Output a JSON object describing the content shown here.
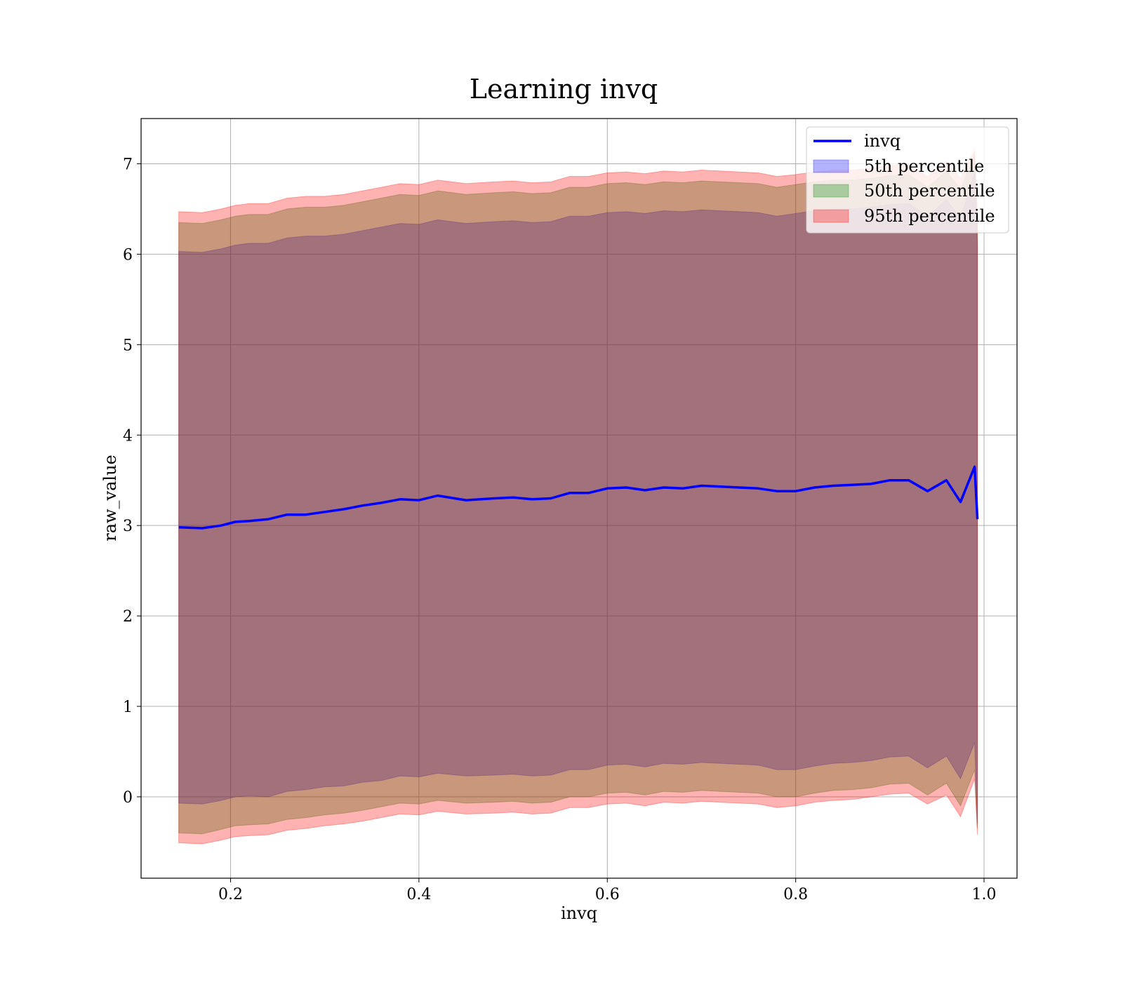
{
  "chart_data": {
    "type": "area",
    "title": "Learning invq",
    "xlabel": "invq",
    "ylabel": "raw_value",
    "xlim": [
      0.105,
      1.035
    ],
    "ylim": [
      -0.9,
      7.5
    ],
    "xticks": [
      0.2,
      0.4,
      0.6,
      0.8,
      1.0
    ],
    "xtick_labels": [
      "0.2",
      "0.4",
      "0.6",
      "0.8",
      "1.0"
    ],
    "yticks": [
      0,
      1,
      2,
      3,
      4,
      5,
      6,
      7
    ],
    "ytick_labels": [
      "0",
      "1",
      "2",
      "3",
      "4",
      "5",
      "6",
      "7"
    ],
    "grid": true,
    "legend_position": "top-right",
    "legend": [
      {
        "label": "invq",
        "kind": "line",
        "color": "#0000ff"
      },
      {
        "label": "5th percentile",
        "kind": "patch",
        "color": "#0000ff"
      },
      {
        "label": "50th percentile",
        "kind": "patch",
        "color": "#008000"
      },
      {
        "label": "95th percentile",
        "kind": "patch",
        "color": "#ff0000"
      }
    ],
    "x": [
      0.145,
      0.17,
      0.19,
      0.205,
      0.22,
      0.24,
      0.26,
      0.28,
      0.3,
      0.32,
      0.34,
      0.36,
      0.38,
      0.4,
      0.42,
      0.45,
      0.48,
      0.5,
      0.52,
      0.54,
      0.56,
      0.58,
      0.6,
      0.62,
      0.64,
      0.66,
      0.68,
      0.7,
      0.72,
      0.74,
      0.76,
      0.78,
      0.8,
      0.82,
      0.84,
      0.86,
      0.88,
      0.9,
      0.92,
      0.94,
      0.96,
      0.975,
      0.99,
      0.993
    ],
    "series": [
      {
        "name": "invq",
        "type": "line",
        "color": "#0000ff",
        "values": [
          2.98,
          2.97,
          3.0,
          3.04,
          3.05,
          3.07,
          3.12,
          3.12,
          3.15,
          3.18,
          3.22,
          3.25,
          3.29,
          3.28,
          3.33,
          3.28,
          3.3,
          3.31,
          3.29,
          3.3,
          3.36,
          3.36,
          3.41,
          3.42,
          3.39,
          3.42,
          3.41,
          3.44,
          3.43,
          3.42,
          3.41,
          3.38,
          3.38,
          3.42,
          3.44,
          3.45,
          3.46,
          3.5,
          3.5,
          3.38,
          3.5,
          3.26,
          3.65,
          3.07
        ]
      },
      {
        "name": "5th percentile",
        "type": "band",
        "color": "#0000ff",
        "lower": [
          -0.07,
          -0.08,
          -0.04,
          0.0,
          0.01,
          0.0,
          0.06,
          0.08,
          0.11,
          0.12,
          0.16,
          0.18,
          0.23,
          0.22,
          0.26,
          0.23,
          0.24,
          0.25,
          0.23,
          0.24,
          0.3,
          0.3,
          0.35,
          0.36,
          0.33,
          0.37,
          0.36,
          0.38,
          0.37,
          0.36,
          0.35,
          0.3,
          0.3,
          0.34,
          0.37,
          0.38,
          0.4,
          0.44,
          0.45,
          0.32,
          0.45,
          0.2,
          0.6,
          -0.3
        ],
        "upper": [
          6.03,
          6.02,
          6.06,
          6.1,
          6.12,
          6.12,
          6.18,
          6.2,
          6.2,
          6.22,
          6.26,
          6.3,
          6.34,
          6.33,
          6.38,
          6.34,
          6.36,
          6.37,
          6.35,
          6.36,
          6.42,
          6.42,
          6.46,
          6.47,
          6.45,
          6.48,
          6.47,
          6.49,
          6.48,
          6.47,
          6.46,
          6.42,
          6.45,
          6.48,
          6.5,
          6.5,
          6.52,
          6.55,
          6.56,
          6.42,
          6.6,
          6.4,
          6.9,
          6.1
        ]
      },
      {
        "name": "50th percentile",
        "type": "band",
        "color": "#008000",
        "lower": [
          -0.4,
          -0.41,
          -0.36,
          -0.32,
          -0.31,
          -0.3,
          -0.25,
          -0.23,
          -0.2,
          -0.18,
          -0.15,
          -0.11,
          -0.07,
          -0.08,
          -0.04,
          -0.07,
          -0.06,
          -0.05,
          -0.07,
          -0.06,
          0.0,
          0.0,
          0.04,
          0.05,
          0.02,
          0.06,
          0.05,
          0.07,
          0.06,
          0.05,
          0.04,
          0.0,
          0.0,
          0.04,
          0.07,
          0.08,
          0.1,
          0.14,
          0.15,
          0.02,
          0.15,
          -0.1,
          0.3,
          -0.35
        ],
        "upper": [
          6.35,
          6.34,
          6.38,
          6.42,
          6.44,
          6.44,
          6.5,
          6.52,
          6.52,
          6.54,
          6.58,
          6.62,
          6.66,
          6.65,
          6.7,
          6.66,
          6.68,
          6.69,
          6.67,
          6.68,
          6.74,
          6.74,
          6.78,
          6.79,
          6.77,
          6.8,
          6.79,
          6.81,
          6.8,
          6.79,
          6.78,
          6.74,
          6.77,
          6.8,
          6.82,
          6.82,
          6.84,
          6.87,
          6.88,
          6.74,
          6.92,
          6.72,
          7.1,
          6.3
        ]
      },
      {
        "name": "95th percentile",
        "type": "band",
        "color": "#ff0000",
        "lower": [
          -0.51,
          -0.52,
          -0.48,
          -0.44,
          -0.43,
          -0.42,
          -0.37,
          -0.35,
          -0.32,
          -0.3,
          -0.27,
          -0.23,
          -0.19,
          -0.2,
          -0.16,
          -0.19,
          -0.18,
          -0.17,
          -0.19,
          -0.18,
          -0.12,
          -0.12,
          -0.08,
          -0.07,
          -0.1,
          -0.06,
          -0.07,
          -0.05,
          -0.06,
          -0.07,
          -0.08,
          -0.12,
          -0.1,
          -0.06,
          -0.04,
          -0.03,
          0.0,
          0.03,
          0.04,
          -0.08,
          0.02,
          -0.22,
          0.2,
          -0.42
        ],
        "upper": [
          6.47,
          6.46,
          6.5,
          6.54,
          6.56,
          6.56,
          6.62,
          6.64,
          6.64,
          6.66,
          6.7,
          6.74,
          6.78,
          6.77,
          6.82,
          6.78,
          6.8,
          6.81,
          6.79,
          6.8,
          6.86,
          6.86,
          6.9,
          6.91,
          6.89,
          6.92,
          6.91,
          6.93,
          6.92,
          6.91,
          6.9,
          6.86,
          6.88,
          6.91,
          6.93,
          6.93,
          6.95,
          6.98,
          6.99,
          6.86,
          7.03,
          6.84,
          7.15,
          6.45
        ]
      }
    ]
  }
}
